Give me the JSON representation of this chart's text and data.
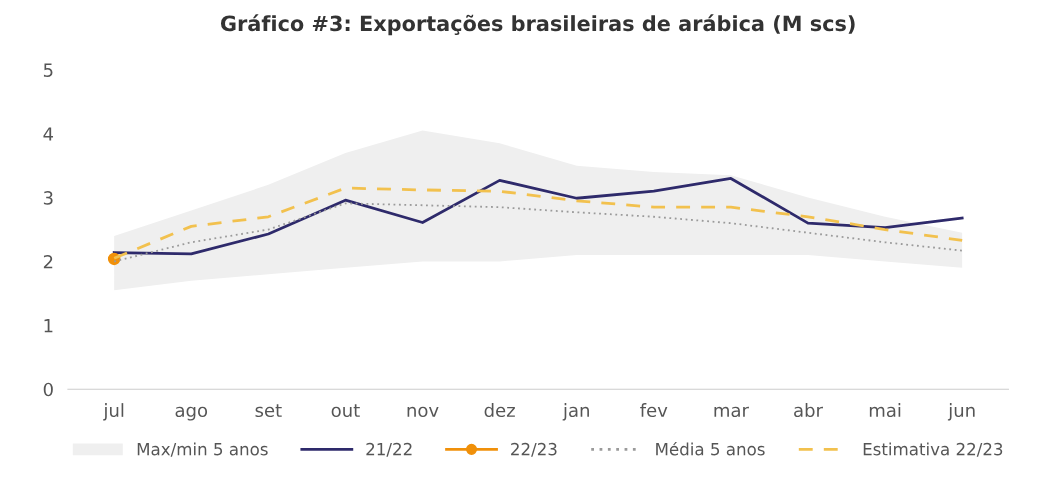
{
  "chart_data": {
    "type": "line",
    "title": "Gráfico #3: Exportações brasileiras de arábica (M scs)",
    "categories": [
      "jul",
      "ago",
      "set",
      "out",
      "nov",
      "dez",
      "jan",
      "fev",
      "mar",
      "abr",
      "mai",
      "jun"
    ],
    "ylim": [
      0,
      5
    ],
    "yticks": [
      0,
      1,
      2,
      3,
      4,
      5
    ],
    "grid": false,
    "legend": "bottom",
    "annotations": [
      "Max/min 5 anos"
    ],
    "series": [
      {
        "name": "21/22",
        "color": "#2e2a6b",
        "line_style": "solid",
        "marker": "none",
        "values": [
          2.14,
          2.12,
          2.43,
          2.96,
          2.61,
          3.27,
          2.99,
          3.1,
          3.3,
          2.6,
          2.53,
          2.68
        ]
      },
      {
        "name": "22/23",
        "color": "#f0900a",
        "line_style": "solid",
        "marker": "circle",
        "values": [
          2.04,
          null,
          null,
          null,
          null,
          null,
          null,
          null,
          null,
          null,
          null,
          null
        ]
      },
      {
        "name": "Média 5 anos",
        "color": "#9a9a9a",
        "line_style": "dotted",
        "marker": "none",
        "values": [
          2.0,
          2.3,
          2.5,
          2.91,
          2.88,
          2.85,
          2.77,
          2.7,
          2.6,
          2.45,
          2.3,
          2.17
        ],
        "lower": [
          1.55,
          1.7,
          1.8,
          1.9,
          2.0,
          2.0,
          2.1,
          2.1,
          2.1,
          2.1,
          2.0,
          1.9
        ],
        "upper": [
          2.4,
          2.8,
          3.2,
          3.7,
          4.05,
          3.85,
          3.5,
          3.4,
          3.35,
          3.0,
          2.7,
          2.45
        ]
      },
      {
        "name": "Estimativa 22/23",
        "color": "#f2c14e",
        "line_style": "dashed",
        "marker": "none",
        "values": [
          2.05,
          2.55,
          2.7,
          3.15,
          3.12,
          3.1,
          2.95,
          2.85,
          2.85,
          2.7,
          2.5,
          2.33
        ]
      }
    ]
  }
}
